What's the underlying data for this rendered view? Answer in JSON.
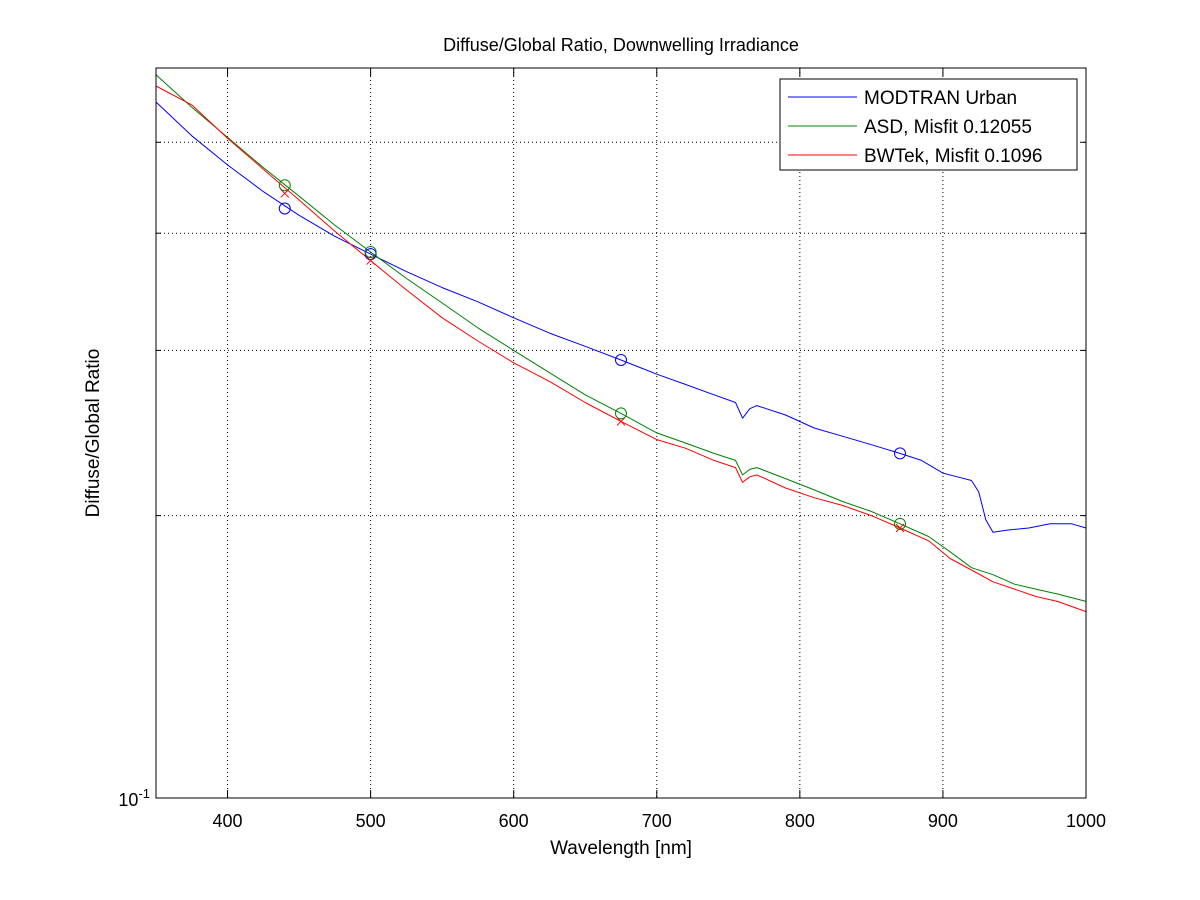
{
  "chart_data": {
    "type": "line",
    "title": "Diffuse/Global Ratio, Downwelling Irradiance",
    "xlabel": "Wavelength [nm]",
    "ylabel": "Diffuse/Global Ratio",
    "xlim": [
      350,
      1000
    ],
    "ylim": [
      0.1,
      0.6
    ],
    "yscale": "log",
    "grid": true,
    "legend_position": "top-right",
    "x_ticks": [
      400,
      500,
      600,
      700,
      800,
      900,
      1000
    ],
    "x_tick_labels": [
      "400",
      "500",
      "600",
      "700",
      "800",
      "900",
      "1000"
    ],
    "y_tick_label": {
      "base": "10",
      "exponent": "-1"
    },
    "y_minor_ticks": [
      0.2,
      0.3,
      0.4,
      0.5
    ],
    "series": [
      {
        "name": "MODTRAN Urban",
        "color": "#0000ff",
        "x": [
          350,
          375,
          400,
          425,
          450,
          475,
          500,
          525,
          550,
          575,
          600,
          625,
          650,
          675,
          690,
          700,
          720,
          740,
          755,
          760,
          765,
          770,
          790,
          810,
          830,
          850,
          870,
          885,
          900,
          910,
          920,
          925,
          930,
          935,
          945,
          960,
          975,
          990,
          1000
        ],
        "y": [
          0.552,
          0.508,
          0.473,
          0.443,
          0.418,
          0.397,
          0.38,
          0.364,
          0.35,
          0.338,
          0.325,
          0.313,
          0.303,
          0.293,
          0.287,
          0.283,
          0.276,
          0.269,
          0.264,
          0.254,
          0.26,
          0.262,
          0.256,
          0.248,
          0.243,
          0.238,
          0.233,
          0.229,
          0.222,
          0.22,
          0.218,
          0.212,
          0.198,
          0.192,
          0.193,
          0.194,
          0.196,
          0.196,
          0.194
        ]
      },
      {
        "name": "ASD, Misfit 0.12055",
        "color": "#008000",
        "x": [
          350,
          375,
          400,
          425,
          450,
          475,
          500,
          525,
          550,
          575,
          600,
          625,
          650,
          675,
          700,
          720,
          740,
          755,
          760,
          765,
          770,
          790,
          810,
          830,
          850,
          870,
          890,
          905,
          920,
          935,
          950,
          965,
          980,
          1000
        ],
        "y": [
          0.59,
          0.545,
          0.506,
          0.47,
          0.438,
          0.408,
          0.382,
          0.358,
          0.337,
          0.317,
          0.3,
          0.284,
          0.269,
          0.257,
          0.245,
          0.239,
          0.233,
          0.229,
          0.221,
          0.224,
          0.225,
          0.219,
          0.213,
          0.207,
          0.202,
          0.196,
          0.19,
          0.183,
          0.176,
          0.173,
          0.169,
          0.167,
          0.165,
          0.162
        ]
      },
      {
        "name": "BWTek, Misfit 0.1096",
        "color": "#ff0000",
        "x": [
          350,
          375,
          400,
          425,
          450,
          475,
          500,
          525,
          550,
          575,
          600,
          625,
          650,
          675,
          700,
          720,
          740,
          755,
          760,
          765,
          770,
          790,
          810,
          830,
          850,
          870,
          890,
          905,
          920,
          935,
          950,
          965,
          980,
          1000
        ],
        "y": [
          0.574,
          0.548,
          0.505,
          0.468,
          0.434,
          0.402,
          0.374,
          0.348,
          0.325,
          0.307,
          0.291,
          0.278,
          0.264,
          0.252,
          0.241,
          0.236,
          0.229,
          0.225,
          0.217,
          0.22,
          0.221,
          0.214,
          0.209,
          0.205,
          0.2,
          0.194,
          0.188,
          0.18,
          0.175,
          0.17,
          0.167,
          0.164,
          0.162,
          0.158
        ]
      }
    ],
    "markers": [
      {
        "series": "MODTRAN Urban",
        "symbol": "circle",
        "x": [
          440,
          500,
          675,
          870
        ],
        "y": [
          0.425,
          0.38,
          0.293,
          0.233
        ]
      },
      {
        "series": "ASD, Misfit 0.12055",
        "symbol": "circle",
        "x": [
          440,
          500,
          675,
          870
        ],
        "y": [
          0.45,
          0.382,
          0.257,
          0.196
        ]
      },
      {
        "series": "BWTek, Misfit 0.1096",
        "symbol": "x",
        "x": [
          440,
          500,
          675,
          870
        ],
        "y": [
          0.441,
          0.374,
          0.252,
          0.194
        ]
      }
    ]
  }
}
